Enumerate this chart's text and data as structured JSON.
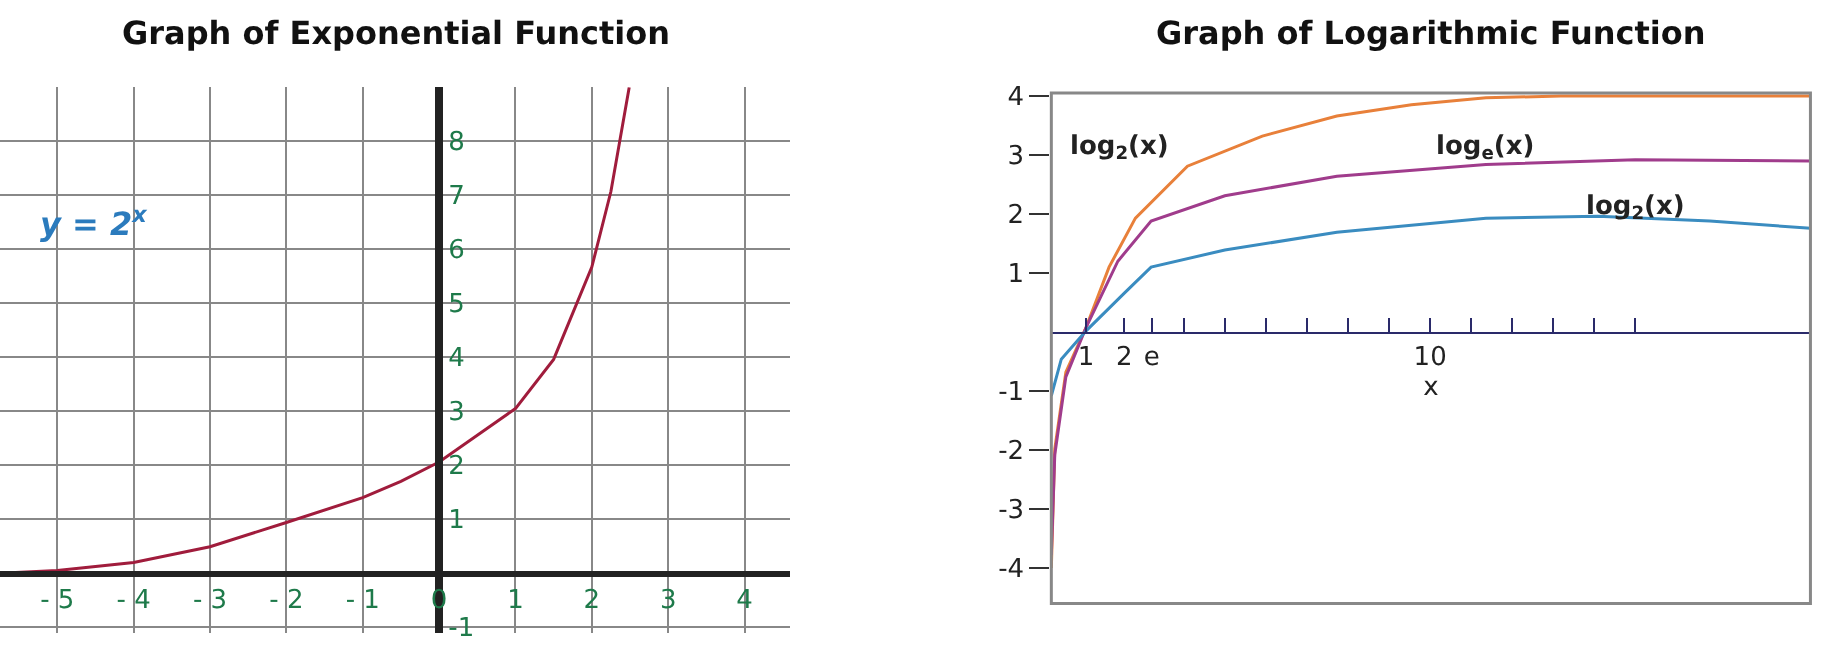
{
  "chart_data": [
    {
      "type": "line",
      "title": "Graph of Exponential Function",
      "x": [
        -5.75,
        -5,
        -4,
        -3,
        -2,
        -1,
        -0.5,
        0,
        1,
        1.5,
        2,
        2.25,
        2.49
      ],
      "series": [
        {
          "color": "#a01c3c",
          "values": [
            0,
            0.05,
            0.2,
            0.49,
            0.94,
            1.4,
            1.7,
            2.06,
            3.05,
            3.96,
            5.67,
            7.07,
            9
          ]
        }
      ],
      "xlim": [
        -5.75,
        4.6
      ],
      "ylim": [
        -1.1,
        9
      ],
      "xticks": [
        {
          "value": -5,
          "label": "- 5"
        },
        {
          "value": -4,
          "label": "- 4"
        },
        {
          "value": -3,
          "label": "- 3"
        },
        {
          "value": -2,
          "label": "- 2"
        },
        {
          "value": -1,
          "label": "- 1"
        },
        0,
        1,
        2,
        3,
        4
      ],
      "yticks": [
        -1,
        1,
        2,
        3,
        4,
        5,
        6,
        7,
        8
      ],
      "annotations": [
        "y = 2$^{x}$"
      ],
      "grid": true,
      "marker": "none",
      "line_style": "solid"
    },
    {
      "type": "line",
      "title": "Graph of Logarithmic Function",
      "xlabel": "x",
      "series": [
        {
          "color": "#e8803a",
          "x": [
            0.09,
            0.18,
            0.47,
            1,
            1.6,
            2.29,
            3.65,
            5.61,
            7.56,
            9.51,
            11.46,
            13.42,
            15.37,
            19.95
          ],
          "values": [
            -4,
            -1.98,
            -0.68,
            0.08,
            1.1,
            1.93,
            2.81,
            3.32,
            3.66,
            3.85,
            3.97,
            4,
            4,
            4
          ]
        },
        {
          "color": "#a03c8c",
          "x": [
            0.09,
            0.18,
            0.47,
            1,
            1.83,
            2.7,
            4.63,
            7.56,
            11.46,
            15.37,
            19.95
          ],
          "values": [
            -3.78,
            -2.08,
            -0.76,
            0.08,
            1.2,
            1.88,
            2.31,
            2.64,
            2.84,
            2.92,
            2.9
          ]
        },
        {
          "color": "#3a8cc0",
          "x": [
            0.09,
            0.35,
            1,
            2,
            2.7,
            4.63,
            7.56,
            11.46,
            14.39,
            17.32,
            19.95
          ],
          "values": [
            -1.08,
            -0.46,
            0.02,
            0.66,
            1.1,
            1.39,
            1.69,
            1.93,
            1.96,
            1.88,
            1.76
          ]
        }
      ],
      "xlim": [
        0.09,
        19.95
      ],
      "ylim": [
        -4.6,
        4.05
      ],
      "xticks": [
        1,
        2,
        {
          "value": 2.718,
          "label": "e"
        },
        {
          "value": 3.56,
          "label": null
        },
        {
          "value": 4.63,
          "label": null
        },
        {
          "value": 5.7,
          "label": null
        },
        {
          "value": 6.78,
          "label": null
        },
        {
          "value": 7.85,
          "label": null
        },
        {
          "value": 8.93,
          "label": null
        },
        10,
        {
          "value": 11.07,
          "label": null
        },
        {
          "value": 12.15,
          "label": null
        },
        {
          "value": 13.22,
          "label": null
        },
        {
          "value": 14.29,
          "label": null
        },
        {
          "value": 15.37,
          "label": null
        }
      ],
      "yticks": [
        -4,
        -3,
        -2,
        -1,
        1,
        2,
        3,
        4
      ],
      "annotations": [
        "log$_{2}$(x)",
        "log$_{e}$(x)",
        "log$_{2}$(x)"
      ],
      "grid": false,
      "marker": "none",
      "line_style": "solid"
    }
  ]
}
